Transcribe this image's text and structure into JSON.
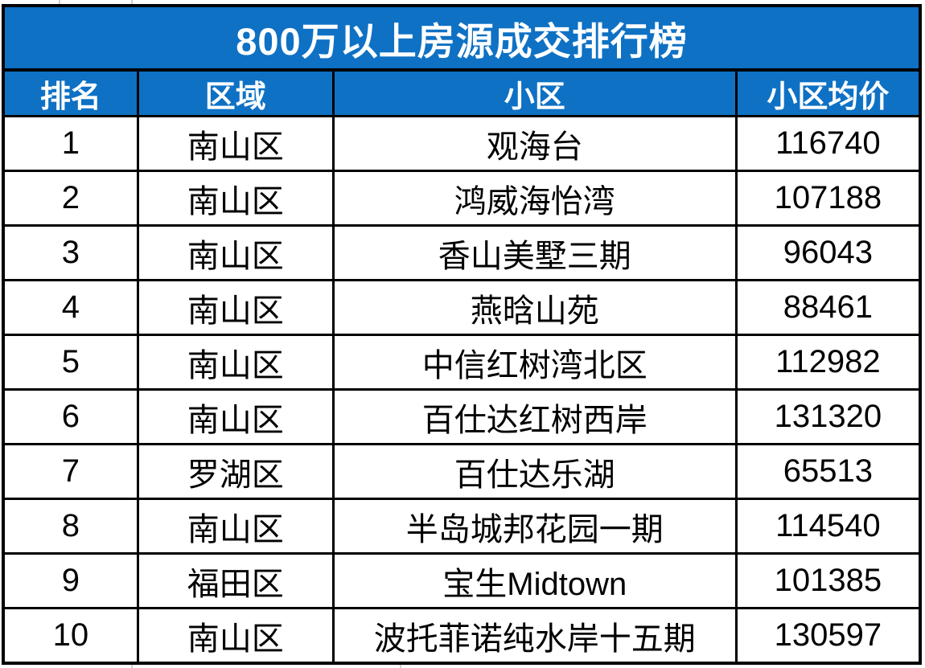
{
  "title": "800万以上房源成交排行榜",
  "colors": {
    "header_bg": "#0e71c4",
    "header_text": "#ffffff",
    "body_text": "#000000",
    "border": "#000000"
  },
  "chart_data": {
    "type": "table",
    "title": "800万以上房源成交排行榜",
    "columns": [
      "排名",
      "区域",
      "小区",
      "小区均价"
    ],
    "rows": [
      {
        "rank": "1",
        "district": "南山区",
        "community": "观海台",
        "price": "116740"
      },
      {
        "rank": "2",
        "district": "南山区",
        "community": "鸿威海怡湾",
        "price": "107188"
      },
      {
        "rank": "3",
        "district": "南山区",
        "community": "香山美墅三期",
        "price": "96043"
      },
      {
        "rank": "4",
        "district": "南山区",
        "community": "燕晗山苑",
        "price": "88461"
      },
      {
        "rank": "5",
        "district": "南山区",
        "community": "中信红树湾北区",
        "price": "112982"
      },
      {
        "rank": "6",
        "district": "南山区",
        "community": "百仕达红树西岸",
        "price": "131320"
      },
      {
        "rank": "7",
        "district": "罗湖区",
        "community": "百仕达乐湖",
        "price": "65513"
      },
      {
        "rank": "8",
        "district": "南山区",
        "community": "半岛城邦花园一期",
        "price": "114540"
      },
      {
        "rank": "9",
        "district": "福田区",
        "community": "宝生Midtown",
        "price": "101385"
      },
      {
        "rank": "10",
        "district": "南山区",
        "community": "波托菲诺纯水岸十五期",
        "price": "130597"
      }
    ]
  }
}
